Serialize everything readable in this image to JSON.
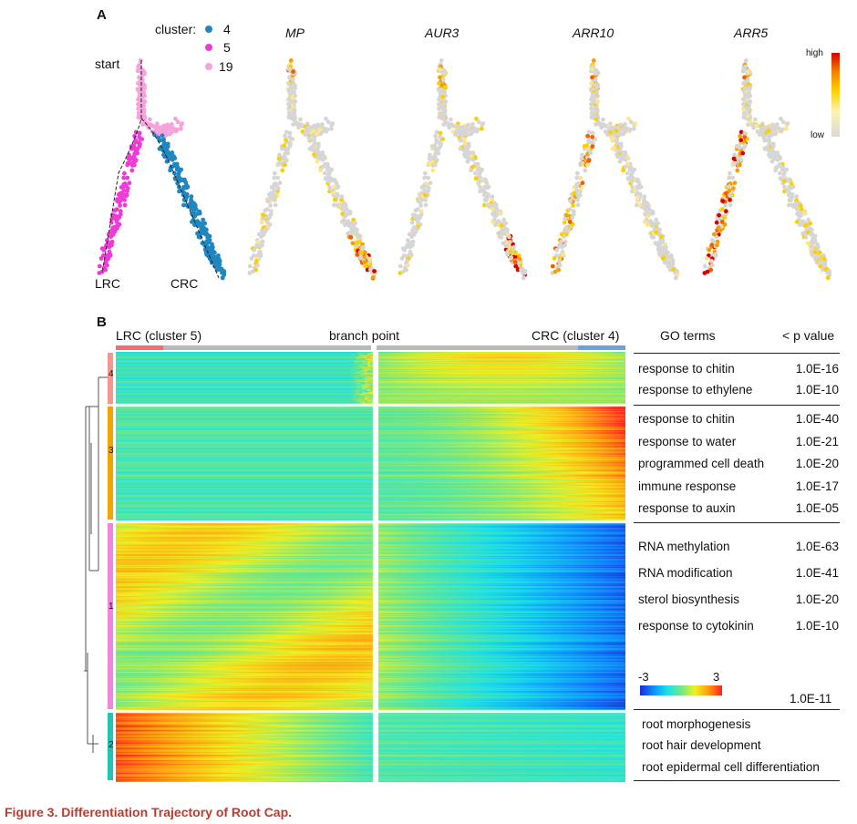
{
  "panel_a": {
    "letter": "A",
    "legend_title": "cluster:",
    "clusters": [
      {
        "label": "4",
        "color": "#1f86c0"
      },
      {
        "label": "5",
        "color": "#ee3bd6"
      },
      {
        "label": "19",
        "color": "#f5a2dd"
      }
    ],
    "label_start": "start",
    "label_lrc": "LRC",
    "label_crc": "CRC",
    "genes": [
      "MP",
      "AUR3",
      "ARR10",
      "ARR5"
    ],
    "scale_high": "high",
    "scale_low": "low"
  },
  "panel_b": {
    "letter": "B",
    "header_left": "LRC (cluster 5)",
    "header_mid": "branch point",
    "header_right": "CRC (cluster 4)",
    "go_header": "GO terms",
    "p_header": "< p value",
    "row_cluster_labels": [
      "4",
      "3",
      "1",
      "2"
    ],
    "go_groups": [
      {
        "terms": [
          {
            "term": "response to chitin",
            "p": "1.0E-16"
          },
          {
            "term": "response to ethylene",
            "p": "1.0E-10"
          }
        ]
      },
      {
        "terms": [
          {
            "term": "response to chitin",
            "p": "1.0E-40"
          },
          {
            "term": "response to water",
            "p": "1.0E-21"
          },
          {
            "term": "programmed cell death",
            "p": "1.0E-20"
          },
          {
            "term": "immune response",
            "p": "1.0E-17"
          },
          {
            "term": "response to auxin",
            "p": "1.0E-05"
          }
        ]
      },
      {
        "terms": [
          {
            "term": "RNA methylation",
            "p": "1.0E-63"
          },
          {
            "term": "RNA modification",
            "p": "1.0E-41"
          },
          {
            "term": "sterol biosynthesis",
            "p": "1.0E-20"
          },
          {
            "term": "response to cytokinin",
            "p": "1.0E-10"
          }
        ]
      },
      {
        "p_group": "1.0E-11",
        "terms": [
          {
            "term": "root morphogenesis"
          },
          {
            "term": "root hair development"
          },
          {
            "term": "root epidermal cell differentiation"
          }
        ]
      }
    ],
    "colorbar_min": "-3",
    "colorbar_max": "3"
  },
  "caption": "Figure 3.  Differentiation Trajectory of Root Cap."
}
